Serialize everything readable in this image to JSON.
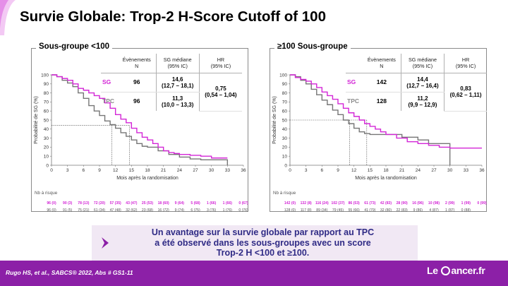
{
  "title": "Survie Globale: Trop-2 H-Score Cutoff of 100",
  "panels": [
    {
      "title": "Sous-groupe <100",
      "table": {
        "headers": [
          "Évènements\nN",
          "SG médiane\n(95% IC)",
          "HR\n(95% IC)"
        ],
        "rows": [
          {
            "arm": "SG",
            "events": "96",
            "median": "14,6\n(12,7 – 18,1)"
          },
          {
            "arm": "TPC",
            "events": "96",
            "median": "11,3\n(10,0 – 13,3)"
          }
        ],
        "hr": "0,75\n(0,54 – 1,04)"
      },
      "at_risk_label": "Nb à risque",
      "at_risk_sg": [
        "96 (0)",
        "90 (3)",
        "78 (13)",
        "72 (20)",
        "57 (35)",
        "43 (47)",
        "25 (53)",
        "18 (60)",
        "9 (64)",
        "5 (68)",
        "1 (66)",
        "1 (66)",
        "0 (67)"
      ],
      "at_risk_tpc": [
        "96 (0)",
        "91 (5)",
        "75 (21)",
        "61 (34)",
        "47 (48)",
        "32 (62)",
        "23 (68)",
        "16 (72)",
        "9 (74)",
        "6 (75)",
        "3 (76)",
        "1 (76)",
        "0 (76)"
      ]
    },
    {
      "title": "≥100 Sous-groupe",
      "table": {
        "headers": [
          "Évènements\nN",
          "SG médiane\n(95% IC)",
          "HR\n(95% IC)"
        ],
        "rows": [
          {
            "arm": "SG",
            "events": "142",
            "median": "14,4\n(12,7 – 16,4)"
          },
          {
            "arm": "TPC",
            "events": "128",
            "median": "11,2\n(9,9 – 12,9)"
          }
        ],
        "hr": "0,83\n(0,62 – 1,11)"
      },
      "at_risk_label": "Nb à risque",
      "at_risk_sg": [
        "142 (0)",
        "132 (8)",
        "116 (24)",
        "102 (37)",
        "86 (53)",
        "61 (73)",
        "42 (83)",
        "28 (90)",
        "16 (96)",
        "10 (98)",
        "2 (99)",
        "1 (99)",
        "0 (99)"
      ],
      "at_risk_tpc": [
        "128 (0)",
        "117 (8)",
        "89 (34)",
        "79 (45)",
        "55 (66)",
        "41 (79)",
        "32 (80)",
        "22 (83)",
        "9 (86)",
        "4 (87)",
        "1 (87)",
        "0 (88)"
      ]
    }
  ],
  "chart_data": [
    {
      "type": "line",
      "title": "Sous-groupe <100",
      "xlabel": "Mois après la randomisation",
      "ylabel": "Probabilité de SG (%)",
      "xlim": [
        0,
        36
      ],
      "ylim": [
        0,
        100
      ],
      "xticks": [
        0,
        3,
        6,
        9,
        12,
        15,
        18,
        21,
        24,
        27,
        30,
        33,
        36
      ],
      "yticks": [
        0,
        10,
        20,
        30,
        40,
        50,
        60,
        70,
        80,
        90,
        100
      ],
      "medians": [
        11.3,
        14.6
      ],
      "median_y": 44,
      "series": [
        {
          "name": "SG",
          "color": "#d326d6",
          "x": [
            0,
            1,
            2,
            3,
            4,
            5,
            6,
            7,
            8,
            9,
            10,
            11,
            12,
            13,
            14,
            15,
            16,
            17,
            18,
            19,
            20,
            21,
            22,
            23,
            24,
            26,
            28,
            30,
            33
          ],
          "y": [
            100,
            98,
            96,
            94,
            90,
            85,
            83,
            80,
            77,
            74,
            69,
            63,
            56,
            51,
            47,
            41,
            36,
            31,
            28,
            24,
            20,
            16,
            14,
            13,
            12,
            11,
            10,
            8,
            8
          ]
        },
        {
          "name": "TPC",
          "color": "#767676",
          "x": [
            0,
            1,
            2,
            3,
            4,
            5,
            6,
            7,
            8,
            9,
            10,
            11,
            12,
            13,
            14,
            15,
            16,
            17,
            18,
            20,
            22,
            24,
            26,
            28,
            30,
            33
          ],
          "y": [
            100,
            98,
            94,
            91,
            87,
            80,
            74,
            66,
            60,
            55,
            49,
            45,
            41,
            36,
            32,
            28,
            24,
            21,
            20,
            16,
            12,
            9,
            7,
            6,
            6,
            0
          ]
        }
      ]
    },
    {
      "type": "line",
      "title": "≥100 Sous-groupe",
      "xlabel": "Mois après la randomisation",
      "ylabel": "Probabilité de SG (%)",
      "xlim": [
        0,
        36
      ],
      "ylim": [
        0,
        100
      ],
      "xticks": [
        0,
        3,
        6,
        9,
        12,
        15,
        18,
        21,
        24,
        27,
        30,
        33,
        36
      ],
      "yticks": [
        0,
        10,
        20,
        30,
        40,
        50,
        60,
        70,
        80,
        90,
        100
      ],
      "medians": [
        11.2,
        14.4
      ],
      "median_y": 50,
      "series": [
        {
          "name": "SG",
          "color": "#d326d6",
          "x": [
            0,
            1,
            2,
            3,
            4,
            5,
            6,
            7,
            8,
            9,
            10,
            11,
            12,
            13,
            14,
            15,
            16,
            17,
            18,
            20,
            22,
            24,
            26,
            28,
            30,
            33,
            36
          ],
          "y": [
            100,
            97,
            95,
            93,
            90,
            86,
            81,
            77,
            73,
            68,
            63,
            58,
            54,
            50,
            46,
            43,
            40,
            37,
            34,
            30,
            26,
            24,
            22,
            20,
            19,
            19,
            19
          ]
        },
        {
          "name": "TPC",
          "color": "#767676",
          "x": [
            0,
            1,
            2,
            3,
            4,
            5,
            6,
            7,
            8,
            9,
            10,
            11,
            12,
            13,
            14,
            15,
            18,
            21,
            24,
            26,
            27,
            30
          ],
          "y": [
            100,
            98,
            94,
            90,
            84,
            78,
            72,
            67,
            61,
            56,
            50,
            46,
            41,
            37,
            35,
            34,
            34,
            31,
            28,
            24,
            24,
            0
          ]
        }
      ]
    }
  ],
  "callout": {
    "text": "Un avantage sur la survie globale par rapport au TPC\na été observé dans les sous-groupes avec un score\nTrop-2 H <100 et ≥100."
  },
  "footer": {
    "reference": "Rugo HS, et al., SABCS® 2022, Abs # GS1-11",
    "logo_left": "Le ",
    "logo_right": "ancer.fr"
  },
  "colors": {
    "sg": "#d326d6",
    "tpc": "#767676",
    "footer_bg": "#8c20a7",
    "callout_bg": "#f1e8f4",
    "callout_text": "#2f2a85"
  }
}
